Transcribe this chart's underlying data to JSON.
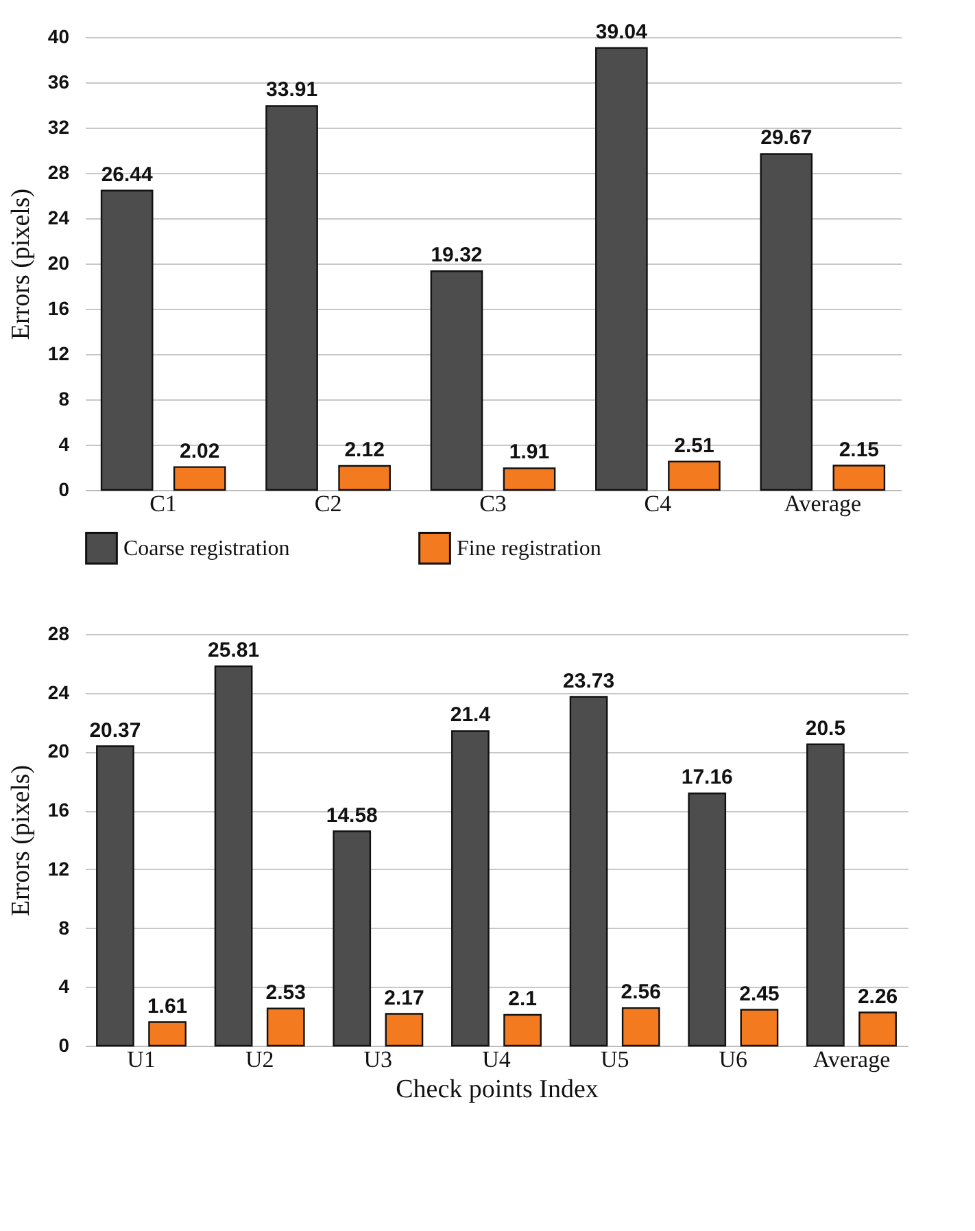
{
  "chart_data": [
    {
      "type": "bar",
      "categories": [
        "C1",
        "C2",
        "C3",
        "C4",
        "Average"
      ],
      "ylabel": "Errors (pixels)",
      "ylim": [
        0,
        40
      ],
      "yticks": [
        0,
        4,
        8,
        12,
        16,
        20,
        24,
        28,
        32,
        36,
        40
      ],
      "grid": "y",
      "legend": "bottom",
      "data_labels": true,
      "series": [
        {
          "name": "Coarse registration",
          "color": "#4d4d4d",
          "values": [
            26.44,
            33.91,
            19.32,
            39.04,
            29.67
          ]
        },
        {
          "name": "Fine registration",
          "color": "#f47a20",
          "values": [
            2.02,
            2.12,
            1.91,
            2.51,
            2.15
          ]
        }
      ]
    },
    {
      "type": "bar",
      "categories": [
        "U1",
        "U2",
        "U3",
        "U4",
        "U5",
        "U6",
        "Average"
      ],
      "xlabel": "Check points Index",
      "ylabel": "Errors (pixels)",
      "ylim": [
        0,
        28
      ],
      "yticks": [
        0,
        4,
        8,
        12,
        16,
        20,
        24,
        28
      ],
      "grid": "y",
      "data_labels": true,
      "series": [
        {
          "color": "#4d4d4d",
          "values": [
            20.37,
            25.81,
            14.58,
            21.4,
            23.73,
            17.16,
            20.5
          ]
        },
        {
          "color": "#f47a20",
          "values": [
            1.61,
            2.53,
            2.17,
            2.1,
            2.56,
            2.45,
            2.26
          ]
        }
      ]
    }
  ]
}
